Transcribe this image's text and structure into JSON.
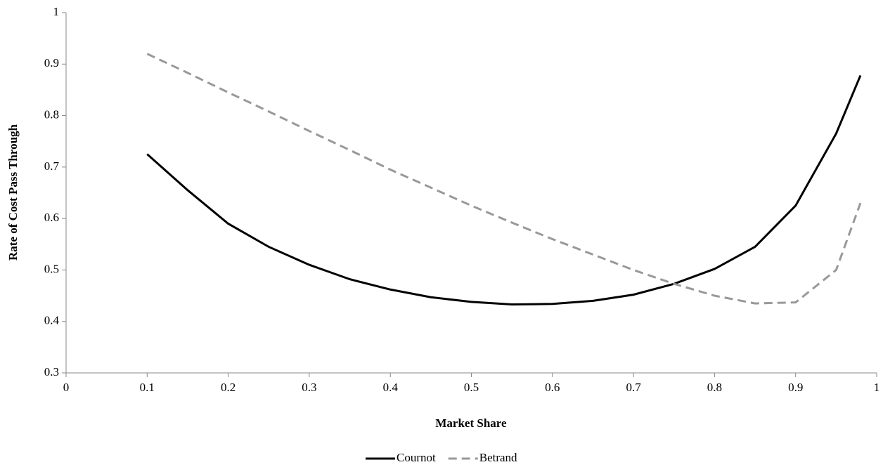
{
  "chart_data": {
    "type": "line",
    "x_label": "Market Share",
    "y_label": "Rate of Cost Pass Through",
    "x": [
      0.1,
      0.15,
      0.2,
      0.25,
      0.3,
      0.35,
      0.4,
      0.45,
      0.5,
      0.55,
      0.6,
      0.65,
      0.7,
      0.75,
      0.8,
      0.85,
      0.9,
      0.95,
      0.98
    ],
    "series": [
      {
        "name": "Cournot",
        "color": "#000000",
        "dash": false,
        "values": [
          0.725,
          0.655,
          0.59,
          0.545,
          0.51,
          0.482,
          0.462,
          0.447,
          0.438,
          0.433,
          0.434,
          0.44,
          0.452,
          0.473,
          0.502,
          0.545,
          0.625,
          0.765,
          0.878
        ]
      },
      {
        "name": "Betrand",
        "color": "#999999",
        "dash": true,
        "values": [
          0.92,
          0.883,
          0.845,
          0.808,
          0.77,
          0.733,
          0.695,
          0.66,
          0.625,
          0.592,
          0.56,
          0.53,
          0.5,
          0.473,
          0.45,
          0.435,
          0.437,
          0.5,
          0.63
        ]
      }
    ],
    "xlim": [
      0,
      1
    ],
    "xticks": [
      0,
      0.1,
      0.2,
      0.3,
      0.4,
      0.5,
      0.6,
      0.7,
      0.8,
      0.9,
      1
    ],
    "ylim": [
      0.3,
      1
    ],
    "yticks": [
      0.3,
      0.4,
      0.5,
      0.6,
      0.7,
      0.8,
      0.9,
      1
    ],
    "grid": false,
    "legend": "bottom"
  }
}
